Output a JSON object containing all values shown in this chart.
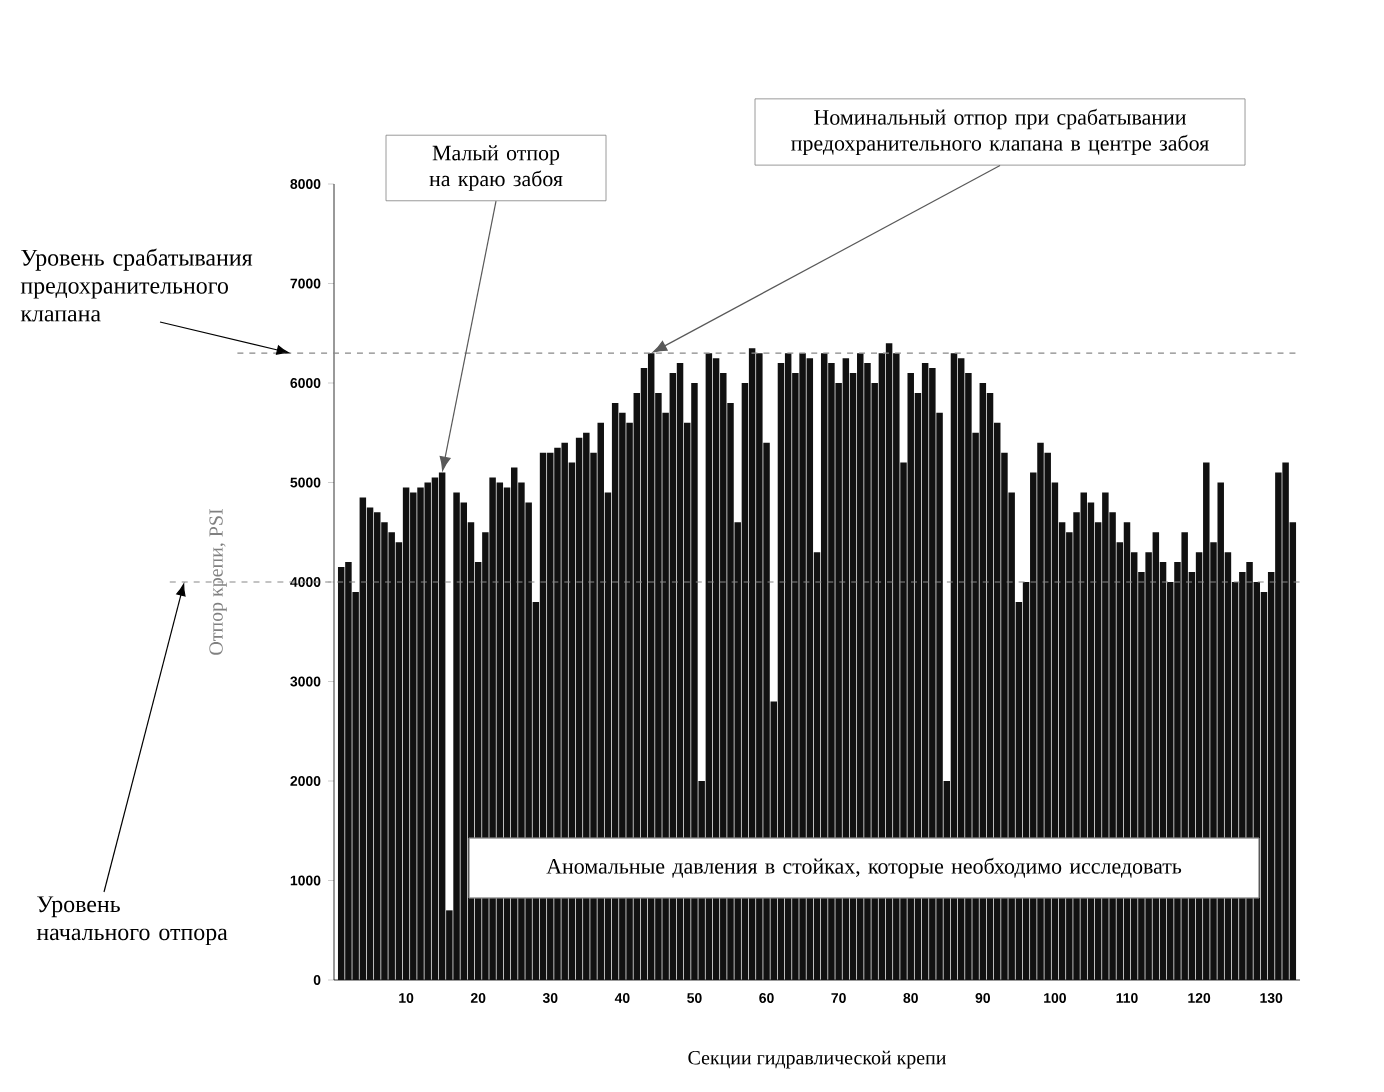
{
  "chart_data": {
    "type": "bar",
    "xlabel": "Секции гидравлической крепи",
    "ylabel": "Отпор крепи, PSI",
    "color": "#111111",
    "x": [
      1,
      2,
      3,
      4,
      5,
      6,
      7,
      8,
      9,
      10,
      11,
      12,
      13,
      14,
      15,
      16,
      17,
      18,
      19,
      20,
      21,
      22,
      23,
      24,
      25,
      26,
      27,
      28,
      29,
      30,
      31,
      32,
      33,
      34,
      35,
      36,
      37,
      38,
      39,
      40,
      41,
      42,
      43,
      44,
      45,
      46,
      47,
      48,
      49,
      50,
      51,
      52,
      53,
      54,
      55,
      56,
      57,
      58,
      59,
      60,
      61,
      62,
      63,
      64,
      65,
      66,
      67,
      68,
      69,
      70,
      71,
      72,
      73,
      74,
      75,
      76,
      77,
      78,
      79,
      80,
      81,
      82,
      83,
      84,
      85,
      86,
      87,
      88,
      89,
      90,
      91,
      92,
      93,
      94,
      95,
      96,
      97,
      98,
      99,
      100,
      101,
      102,
      103,
      104,
      105,
      106,
      107,
      108,
      109,
      110,
      111,
      112,
      113,
      114,
      115,
      116,
      117,
      118,
      119,
      120,
      121,
      122,
      123,
      124,
      125,
      126,
      127,
      128,
      129,
      130,
      131,
      132,
      133
    ],
    "values": [
      4150,
      4200,
      3900,
      4850,
      4750,
      4700,
      4600,
      4500,
      4400,
      4950,
      4900,
      4950,
      5000,
      5050,
      5100,
      700,
      4900,
      4800,
      4600,
      4200,
      4500,
      5050,
      5000,
      4950,
      5150,
      5000,
      4800,
      3800,
      5300,
      5300,
      5350,
      5400,
      5200,
      5450,
      5500,
      5300,
      5600,
      4900,
      5800,
      5700,
      5600,
      5900,
      6150,
      6300,
      5900,
      5700,
      6100,
      6200,
      5600,
      6000,
      2000,
      6300,
      6250,
      6100,
      5800,
      4600,
      6000,
      6350,
      6300,
      5400,
      2800,
      6200,
      6300,
      6100,
      6300,
      6250,
      4300,
      6300,
      6200,
      6000,
      6250,
      6100,
      6300,
      6200,
      6000,
      6300,
      6400,
      6300,
      5200,
      6100,
      5900,
      6200,
      6150,
      5700,
      2000,
      6300,
      6250,
      6100,
      5500,
      6000,
      5900,
      5600,
      5300,
      4900,
      3800,
      4000,
      5100,
      5400,
      5300,
      5000,
      4600,
      4500,
      4700,
      4900,
      4800,
      4600,
      4900,
      4700,
      4400,
      4600,
      4300,
      4100,
      4300,
      4500,
      4200,
      4000,
      4200,
      4500,
      4100,
      4300,
      5200,
      4400,
      5000,
      4300,
      4000,
      4100,
      4200,
      4000,
      3900,
      4100,
      5100,
      5200,
      4600
    ],
    "xlim": [
      0,
      134
    ],
    "xticks": [
      10,
      20,
      30,
      40,
      50,
      60,
      70,
      80,
      90,
      100,
      110,
      120,
      130
    ],
    "ylim": [
      0,
      8000
    ],
    "yticks": [
      0,
      1000,
      2000,
      3000,
      4000,
      5000,
      6000,
      7000,
      8000
    ],
    "ref_lines": [
      {
        "axis": "y",
        "value": 6300,
        "label": "Уровень срабатывания предохранительного клапана",
        "color": "#888888",
        "line_style": "dashed"
      },
      {
        "axis": "y",
        "value": 4000,
        "label": "Уровень начального отпора",
        "color": "#888888",
        "line_style": "dashed"
      }
    ],
    "annotations": [
      {
        "text": "Малый отпор на краю забоя",
        "x": 15,
        "y": 5100
      },
      {
        "text": "Номинальный отпор при срабатывании предохранительного клапана в центре забоя",
        "x": 44,
        "y": 6300
      },
      "Аномальные давления в стойках, которые необходимо исследовать"
    ]
  }
}
